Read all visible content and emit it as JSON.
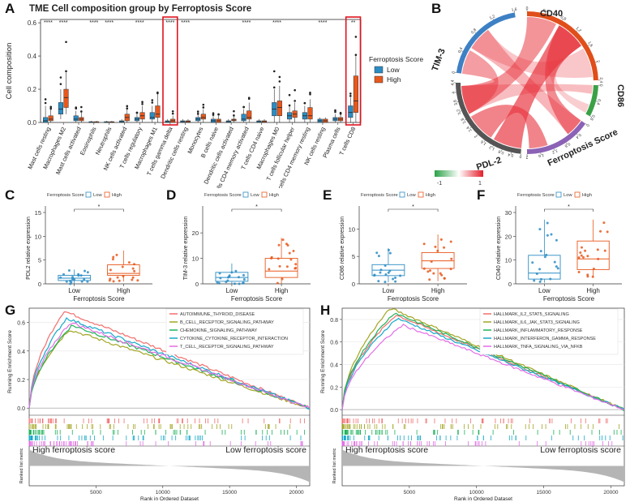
{
  "panels": {
    "A": "A",
    "B": "B",
    "C": "C",
    "D": "D",
    "E": "E",
    "F": "F",
    "G": "G",
    "H": "H"
  },
  "colors": {
    "low": "#2b8cc4",
    "high": "#e8581c",
    "red_box": "#e0141e"
  },
  "chart_data": [
    {
      "id": "A",
      "type": "box",
      "title": "TME Cell composition group by Ferroptosis Score",
      "ylabel": "Cell composition",
      "ylim": [
        0,
        0.62
      ],
      "yticks": [
        "0.0",
        "0.2",
        "0.4",
        "0.6"
      ],
      "legend_title": "Ferroptosis Score",
      "legend": [
        "Low",
        "High"
      ],
      "categories": [
        "Mast cells resting",
        "Macrophages M2",
        "Mast cells activated",
        "Eosinophils",
        "Neutrophils",
        "NK cells activated",
        "T cells regulatory",
        "Macrophages M1",
        "T cells gamma delta",
        "Dendritic cells resting",
        "Monocytes",
        "B cells naive",
        "Dendritic cells activated",
        "T cells CD4 memory activated",
        "T cells CD4 naive",
        "Macrophages M0",
        "T cells follicular helper",
        "T cells CD4 memory resting",
        "NK cells resting",
        "Plasma cells",
        "T cells CD8"
      ],
      "significance": [
        "****",
        "****",
        "",
        "****",
        "****",
        "",
        "****",
        "",
        "****",
        "****",
        "",
        "",
        "",
        "****",
        "",
        "****",
        "",
        "",
        "****",
        "",
        "**"
      ],
      "highlighted": [
        "T cells gamma delta",
        "T cells CD8"
      ],
      "low": [
        [
          0,
          0,
          0.01,
          0.03,
          0.1
        ],
        [
          0.02,
          0.05,
          0.08,
          0.12,
          0.2
        ],
        [
          0,
          0.01,
          0.02,
          0.04,
          0.07
        ],
        [
          0,
          0,
          0,
          0.005,
          0.01
        ],
        [
          0,
          0,
          0,
          0.005,
          0.01
        ],
        [
          0,
          0,
          0.005,
          0.01,
          0.02
        ],
        [
          0,
          0.01,
          0.02,
          0.03,
          0.05
        ],
        [
          0,
          0.02,
          0.03,
          0.06,
          0.1
        ],
        [
          0,
          0,
          0.005,
          0.01,
          0.02
        ],
        [
          0,
          0,
          0.005,
          0.01,
          0.02
        ],
        [
          0,
          0.01,
          0.02,
          0.03,
          0.05
        ],
        [
          0,
          0,
          0.01,
          0.02,
          0.04
        ],
        [
          0,
          0,
          0.005,
          0.01,
          0.02
        ],
        [
          0,
          0.01,
          0.02,
          0.05,
          0.08
        ],
        [
          0,
          0,
          0.005,
          0.01,
          0.02
        ],
        [
          0,
          0.04,
          0.08,
          0.12,
          0.2
        ],
        [
          0,
          0.02,
          0.04,
          0.06,
          0.1
        ],
        [
          0,
          0.02,
          0.04,
          0.06,
          0.1
        ],
        [
          0,
          0,
          0.01,
          0.02,
          0.03
        ],
        [
          0,
          0.01,
          0.02,
          0.03,
          0.05
        ],
        [
          0,
          0.03,
          0.06,
          0.1,
          0.15
        ]
      ],
      "high": [
        [
          0,
          0.01,
          0.02,
          0.04,
          0.08
        ],
        [
          0.05,
          0.09,
          0.15,
          0.2,
          0.3
        ],
        [
          0,
          0.01,
          0.02,
          0.03,
          0.06
        ],
        [
          0,
          0,
          0,
          0.005,
          0.01
        ],
        [
          0,
          0,
          0,
          0.005,
          0.01
        ],
        [
          0,
          0.01,
          0.03,
          0.05,
          0.08
        ],
        [
          0,
          0.02,
          0.04,
          0.06,
          0.1
        ],
        [
          0,
          0.03,
          0.05,
          0.1,
          0.17
        ],
        [
          0,
          0,
          0.01,
          0.02,
          0.04
        ],
        [
          0,
          0,
          0.005,
          0.01,
          0.02
        ],
        [
          0,
          0.02,
          0.03,
          0.05,
          0.08
        ],
        [
          0,
          0,
          0.01,
          0.02,
          0.04
        ],
        [
          0,
          0.01,
          0.015,
          0.02,
          0.04
        ],
        [
          0,
          0.02,
          0.03,
          0.07,
          0.12
        ],
        [
          0,
          0,
          0.005,
          0.01,
          0.02
        ],
        [
          0,
          0.04,
          0.09,
          0.13,
          0.22
        ],
        [
          0,
          0.03,
          0.05,
          0.07,
          0.12
        ],
        [
          0,
          0.02,
          0.04,
          0.09,
          0.14
        ],
        [
          0,
          0,
          0.01,
          0.02,
          0.03
        ],
        [
          0,
          0.01,
          0.02,
          0.03,
          0.05
        ],
        [
          0,
          0.06,
          0.13,
          0.28,
          0.4
        ]
      ]
    },
    {
      "id": "B",
      "type": "chord",
      "sectors": [
        {
          "name": "CD40",
          "color": "#3d80c4",
          "ticks": [
            "0",
            "0.4",
            "0.8",
            "1.2",
            "1.6"
          ]
        },
        {
          "name": "CD86",
          "color": "#e04e1a",
          "ticks": [
            "0",
            "0.4",
            "0.8",
            "1.2",
            "1.6",
            "2",
            "2.4"
          ]
        },
        {
          "name": "Ferroptosis Score",
          "color": "#3aa147",
          "ticks": [
            "0",
            "0.4",
            "0.8"
          ]
        },
        {
          "name": "PDL-2",
          "color": "#8b62b6",
          "ticks": [
            "0",
            "0.4",
            "0.8",
            "1.2",
            "1.6",
            "2"
          ]
        },
        {
          "name": "TIM-3",
          "color": "#555555",
          "ticks": [
            "0",
            "0.4",
            "0.8",
            "1.2",
            "1.6",
            "2",
            "2.4",
            "2.8",
            "3.2",
            "3.6",
            "4",
            "4.4"
          ]
        }
      ],
      "colorbar": {
        "min": "-1",
        "max": "1"
      }
    },
    {
      "id": "C",
      "type": "box",
      "legend_title": "Ferroptosis Score",
      "legend": [
        "Low",
        "High"
      ],
      "ylabel": "PDL2 relative expression",
      "xlabel": "Ferroptosis Score",
      "categories": [
        "Low",
        "High"
      ],
      "ylim": [
        0,
        15
      ],
      "yticks": [
        "0",
        "5",
        "10",
        "15"
      ],
      "significance": "*",
      "low": [
        0,
        0.7,
        1.2,
        1.8,
        3
      ],
      "high": [
        0.5,
        1.8,
        2.2,
        4,
        7
      ]
    },
    {
      "id": "D",
      "type": "box",
      "legend_title": "Ferroptosis Score",
      "legend": [
        "Low",
        "High"
      ],
      "ylabel": "TIM-3 relative expression",
      "xlabel": "Ferroptosis Score",
      "categories": [
        "Low",
        "High"
      ],
      "ylim": [
        0,
        28
      ],
      "yticks": [
        "0",
        "10",
        "20"
      ],
      "significance": "*",
      "low": [
        0,
        1,
        2.5,
        4.5,
        8
      ],
      "high": [
        0,
        2.5,
        5,
        10,
        18
      ]
    },
    {
      "id": "E",
      "type": "box",
      "legend_title": "Ferroptosis Score",
      "legend": [
        "Low",
        "High"
      ],
      "ylabel": "CD86 relative expression",
      "xlabel": "Ferroptosis Score",
      "categories": [
        "Low",
        "High"
      ],
      "ylim": [
        0,
        13
      ],
      "yticks": [
        "0",
        "5",
        "10"
      ],
      "significance": "*",
      "low": [
        0.3,
        1.5,
        2.5,
        3.5,
        6.5
      ],
      "high": [
        0.5,
        2.8,
        4.2,
        5.7,
        9
      ]
    },
    {
      "id": "F",
      "type": "box",
      "legend_title": "Ferroptosis Score",
      "legend": [
        "Low",
        "High"
      ],
      "ylabel": "CD40 relative expression",
      "xlabel": "Ferroptosis Score",
      "categories": [
        "Low",
        "High"
      ],
      "ylim": [
        0,
        30
      ],
      "yticks": [
        "0",
        "10",
        "20",
        "30"
      ],
      "significance": "*",
      "low": [
        0.5,
        2,
        4.5,
        12,
        27
      ],
      "high": [
        3,
        6,
        10.5,
        18,
        27
      ]
    },
    {
      "id": "G",
      "type": "line",
      "ylabel": "Running Enrichment Score",
      "xlabel": "Rank in Ordered Dataset",
      "metric_label": "Ranked list metric",
      "yticks": [
        "0.0",
        "0.2",
        "0.4",
        "0.6"
      ],
      "xticks": [
        "5000",
        "10000",
        "15000",
        "20000"
      ],
      "xmax": 21000,
      "left_annotation": "High ferroptosis score",
      "right_annotation": "Low ferroptosis score",
      "series": [
        {
          "name": "AUTOIMMUNE_THYROID_DISEASE",
          "color": "#f26d6d",
          "peak": 0.68,
          "peak_x": 2600
        },
        {
          "name": "B_CELL_RECEPTOR_SIGNALING_PATHWAY",
          "color": "#a3a524",
          "peak": 0.55,
          "peak_x": 3000
        },
        {
          "name": "CHEMOKINE_SIGNALING_PATHWAY",
          "color": "#1fb35a",
          "peak": 0.58,
          "peak_x": 3200
        },
        {
          "name": "CYTOKINE_CYTOKINE_RECEPTOR_INTERACTION",
          "color": "#16a9c9",
          "peak": 0.63,
          "peak_x": 2800
        },
        {
          "name": "T_CELL_RECEPTOR_SIGNALING_PATHWAY",
          "color": "#e36ee6",
          "peak": 0.6,
          "peak_x": 3100
        }
      ]
    },
    {
      "id": "H",
      "type": "line",
      "ylabel": "Running Enrichment Score",
      "xlabel": "Rank in Ordered Dataset",
      "metric_label": "Ranked list metric",
      "yticks": [
        "0.0",
        "0.2",
        "0.4",
        "0.6",
        "0.8"
      ],
      "xticks": [
        "5000",
        "10000",
        "15000",
        "20000"
      ],
      "xmax": 21000,
      "left_annotation": "High ferroptosis score",
      "right_annotation": "Low ferroptosis score",
      "series": [
        {
          "name": "HALLMARK_IL2_STAT5_SIGNALING",
          "color": "#f26d6d",
          "peak": 0.84,
          "peak_x": 4000
        },
        {
          "name": "HALLMARK_IL6_JAK_STAT3_SIGNALING",
          "color": "#a3a524",
          "peak": 0.9,
          "peak_x": 3600
        },
        {
          "name": "HALLMARK_INFLAMMATORY_RESPONSE",
          "color": "#1fb35a",
          "peak": 0.86,
          "peak_x": 3900
        },
        {
          "name": "HALLMARK_INTERFERON_GAMMA_RESPONSE",
          "color": "#16a9c9",
          "peak": 0.81,
          "peak_x": 4100
        },
        {
          "name": "HALLMARK_TNFA_SIGNALING_VIA_NFKB",
          "color": "#e36ee6",
          "peak": 0.75,
          "peak_x": 4500
        }
      ]
    }
  ]
}
